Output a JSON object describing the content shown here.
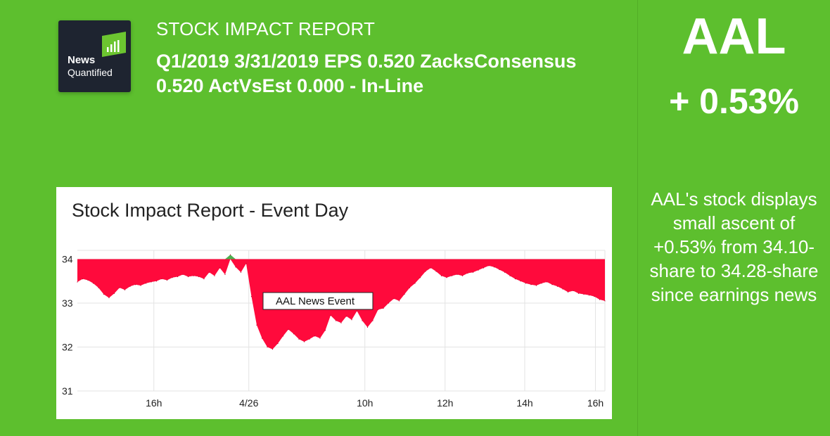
{
  "logo": {
    "line1": "News",
    "line2": "Quantified",
    "accent": "#6cc530"
  },
  "header": {
    "report_title": "STOCK IMPACT REPORT",
    "headline": "Q1/2019 3/31/2019 EPS 0.520 ZacksConsensus 0.520 ActVsEst 0.000 - In-Line"
  },
  "side": {
    "ticker": "AAL",
    "change": "+ 0.53%",
    "summary": "AAL's stock displays small ascent of +0.53% from 34.10-share to 34.28-share since earnings news"
  },
  "colors": {
    "background": "#5dbf2e",
    "below_baseline": "#ff0a3c",
    "above_baseline": "#4caf50"
  },
  "chart_data": {
    "type": "area",
    "title": "Stock Impact Report - Event Day",
    "baseline": 34.0,
    "ylim": [
      31,
      34.2
    ],
    "yticks": [
      31,
      32,
      33,
      34
    ],
    "x_ticks": [
      "16h",
      "4/26",
      "10h",
      "12h",
      "14h",
      "16h"
    ],
    "annotation": "AAL News Event",
    "series": [
      {
        "x": [
          0,
          1,
          2,
          3,
          4,
          5,
          6,
          7,
          8,
          9,
          10,
          11,
          12,
          13,
          14,
          15,
          16,
          17,
          18,
          19,
          20,
          21,
          22,
          23,
          24,
          25,
          26,
          27,
          28,
          29,
          30,
          31,
          32,
          33,
          34,
          35,
          36,
          37,
          38,
          39,
          40,
          41,
          42,
          43,
          44,
          45,
          46,
          47,
          48,
          49,
          50,
          51,
          52,
          53,
          54,
          55,
          56,
          57,
          58,
          59,
          60,
          61,
          62,
          63,
          64,
          65,
          66,
          67,
          68,
          69,
          70,
          71,
          72,
          73,
          74,
          75,
          76,
          77,
          78,
          79,
          80,
          81,
          82,
          83,
          84,
          85,
          86,
          87,
          88,
          89,
          90,
          91,
          92,
          93,
          94,
          95,
          96,
          97,
          98,
          99,
          100
        ],
        "values": [
          33.48,
          33.55,
          33.52,
          33.45,
          33.35,
          33.2,
          33.12,
          33.22,
          33.35,
          33.3,
          33.38,
          33.42,
          33.4,
          33.45,
          33.48,
          33.5,
          33.55,
          33.52,
          33.58,
          33.6,
          33.65,
          33.6,
          33.62,
          33.6,
          33.55,
          33.7,
          33.62,
          33.8,
          33.65,
          34.1,
          33.82,
          33.7,
          33.9,
          33.15,
          32.5,
          32.2,
          32.0,
          31.95,
          32.08,
          32.25,
          32.4,
          32.3,
          32.18,
          32.12,
          32.18,
          32.25,
          32.2,
          32.38,
          32.72,
          32.6,
          32.55,
          32.7,
          32.62,
          32.82,
          32.6,
          32.45,
          32.6,
          32.85,
          32.88,
          33.0,
          33.1,
          33.05,
          33.2,
          33.35,
          33.45,
          33.58,
          33.72,
          33.8,
          33.72,
          33.62,
          33.58,
          33.62,
          33.65,
          33.62,
          33.68,
          33.7,
          33.75,
          33.8,
          33.85,
          33.82,
          33.76,
          33.7,
          33.62,
          33.55,
          33.5,
          33.45,
          33.42,
          33.4,
          33.45,
          33.48,
          33.42,
          33.38,
          33.32,
          33.25,
          33.28,
          33.22,
          33.2,
          33.18,
          33.15,
          33.08,
          33.05
        ]
      }
    ],
    "grid": "on",
    "legend": "none"
  }
}
